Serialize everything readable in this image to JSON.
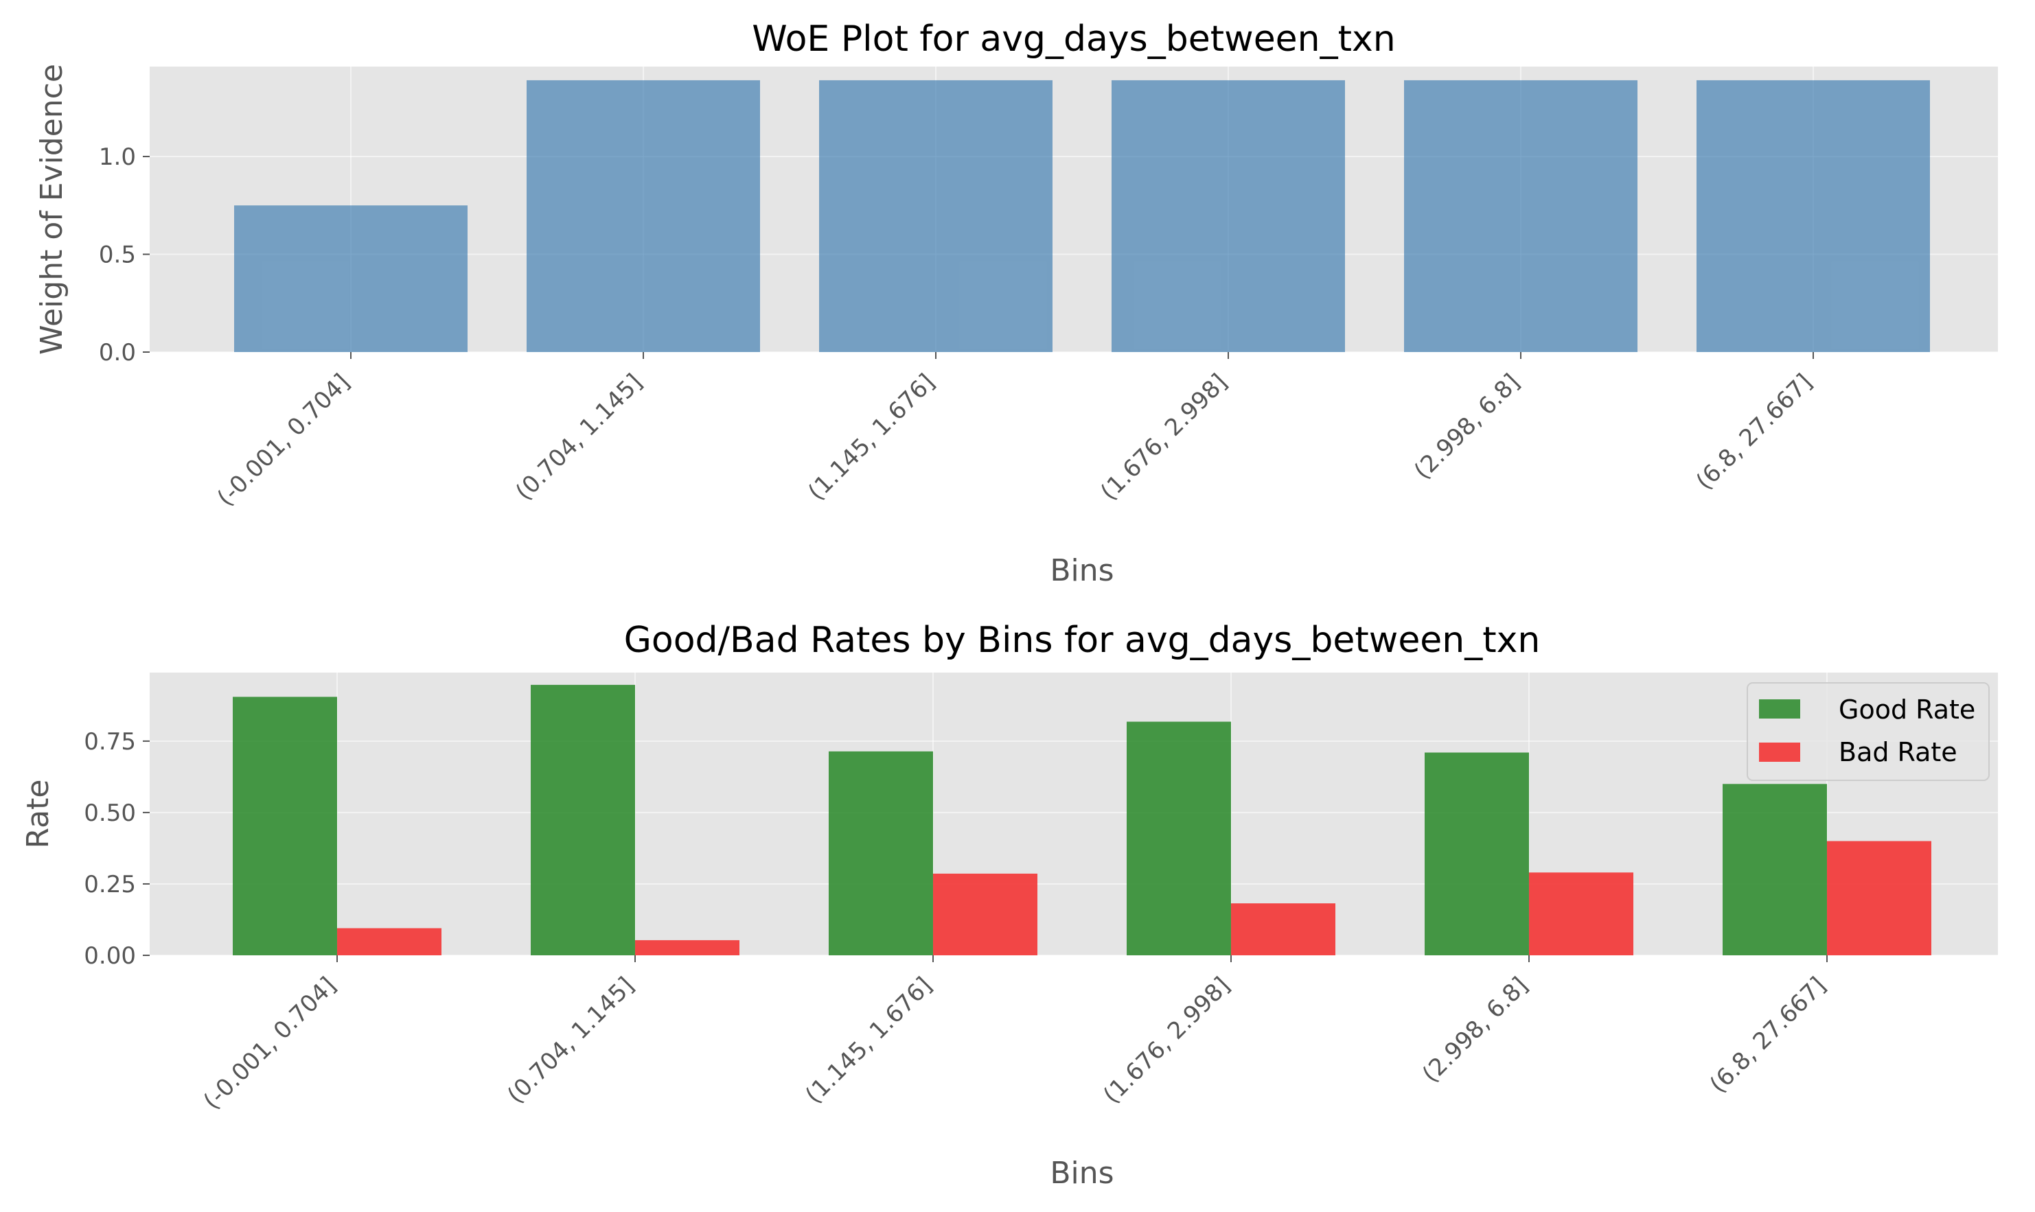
{
  "chart_data": [
    {
      "type": "bar",
      "title": "WoE Plot for avg_days_between_txn",
      "xlabel": "Bins",
      "ylabel": "Weight of Evidence",
      "categories": [
        "(-0.001, 0.704]",
        "(0.704, 1.145]",
        "(1.145, 1.676]",
        "(1.676, 2.998]",
        "(2.998, 6.8]",
        "(6.8, 27.667]"
      ],
      "series": [
        {
          "values": [
            0.75,
            1.39,
            1.39,
            1.39,
            1.39,
            1.39
          ],
          "color": "#4682b4"
        }
      ],
      "ylim": [
        0,
        1.46
      ],
      "yticks": [
        "0.0",
        "0.5",
        "1.0"
      ],
      "ytick_values": [
        0,
        0.5,
        1.0
      ],
      "grid": true,
      "legend": null
    },
    {
      "type": "bar",
      "title": "Good/Bad Rates by Bins for avg_days_between_txn",
      "xlabel": "Bins",
      "ylabel": "Rate",
      "categories": [
        "(-0.001, 0.704]",
        "(0.704, 1.145]",
        "(1.145, 1.676]",
        "(1.676, 2.998]",
        "(2.998, 6.8]",
        "(6.8, 27.667]"
      ],
      "series": [
        {
          "name": "Good Rate",
          "values": [
            0.905,
            0.947,
            0.714,
            0.818,
            0.71,
            0.6
          ],
          "color": "#2e8b2e"
        },
        {
          "name": "Bad Rate",
          "values": [
            0.095,
            0.053,
            0.286,
            0.182,
            0.29,
            0.4
          ],
          "color": "#f43030"
        }
      ],
      "ylim": [
        0,
        0.99
      ],
      "yticks": [
        "0.00",
        "0.25",
        "0.50",
        "0.75"
      ],
      "ytick_values": [
        0,
        0.25,
        0.5,
        0.75
      ],
      "grid": true,
      "legend": "top-right"
    }
  ]
}
